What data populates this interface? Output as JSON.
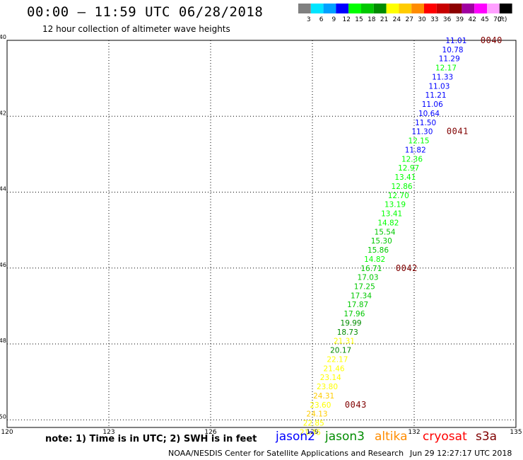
{
  "header": {
    "title": "00:00 – 11:59 UTC 06/28/2018",
    "subtitle": "12 hour collection of altimeter wave heights"
  },
  "color_scale": {
    "unit": "(ft)",
    "bins": [
      {
        "label": "3",
        "color": "#808080"
      },
      {
        "label": "6",
        "color": "#00e5ff"
      },
      {
        "label": "9",
        "color": "#00a0ff"
      },
      {
        "label": "12",
        "color": "#0000ff"
      },
      {
        "label": "15",
        "color": "#00ff00"
      },
      {
        "label": "18",
        "color": "#00c800"
      },
      {
        "label": "21",
        "color": "#008c00"
      },
      {
        "label": "24",
        "color": "#ffff00"
      },
      {
        "label": "27",
        "color": "#ffcc00"
      },
      {
        "label": "30",
        "color": "#ff8c00"
      },
      {
        "label": "33",
        "color": "#ff0000"
      },
      {
        "label": "36",
        "color": "#c80000"
      },
      {
        "label": "39",
        "color": "#8c0000"
      },
      {
        "label": "42",
        "color": "#a000a0"
      },
      {
        "label": "45",
        "color": "#ff00ff"
      },
      {
        "label": "70",
        "color": "#ffa0ff"
      },
      {
        "label": "",
        "color": "#000000"
      }
    ]
  },
  "chart_data": {
    "type": "scatter",
    "xlim": [
      120,
      135
    ],
    "ylim": [
      -50.2,
      -40
    ],
    "x_ticks": [
      {
        "v": 120,
        "label": "120"
      },
      {
        "v": 123,
        "label": "123"
      },
      {
        "v": 126,
        "label": "126"
      },
      {
        "v": 129,
        "label": "129"
      },
      {
        "v": 132,
        "label": "132"
      },
      {
        "v": 135,
        "label": "135"
      }
    ],
    "y_ticks": [
      {
        "v": -40,
        "label": "-40"
      },
      {
        "v": -42,
        "label": "-42"
      },
      {
        "v": -44,
        "label": "-44"
      },
      {
        "v": -46,
        "label": "-46"
      },
      {
        "v": -48,
        "label": "-48"
      },
      {
        "v": -50,
        "label": "-50"
      }
    ],
    "grid": true,
    "points": [
      {
        "x": 133.55,
        "y": -40.0,
        "label": "11.01",
        "color": "#0000ff"
      },
      {
        "x": 133.45,
        "y": -40.24,
        "label": "10.78",
        "color": "#0000ff"
      },
      {
        "x": 133.35,
        "y": -40.48,
        "label": "11.29",
        "color": "#0000ff"
      },
      {
        "x": 133.25,
        "y": -40.72,
        "label": "12.17",
        "color": "#00ff00"
      },
      {
        "x": 133.15,
        "y": -40.96,
        "label": "11.33",
        "color": "#0000ff"
      },
      {
        "x": 133.05,
        "y": -41.2,
        "label": "11.03",
        "color": "#0000ff"
      },
      {
        "x": 132.95,
        "y": -41.44,
        "label": "11.21",
        "color": "#0000ff"
      },
      {
        "x": 132.85,
        "y": -41.68,
        "label": "11.06",
        "color": "#0000ff"
      },
      {
        "x": 132.75,
        "y": -41.92,
        "label": "10.64",
        "color": "#0000ff"
      },
      {
        "x": 132.65,
        "y": -42.16,
        "label": "11.50",
        "color": "#0000ff"
      },
      {
        "x": 132.55,
        "y": -42.4,
        "label": "11.30",
        "color": "#0000ff"
      },
      {
        "x": 132.45,
        "y": -42.64,
        "label": "12.15",
        "color": "#00ff00"
      },
      {
        "x": 132.35,
        "y": -42.88,
        "label": "11.82",
        "color": "#0000ff"
      },
      {
        "x": 132.25,
        "y": -43.12,
        "label": "12.36",
        "color": "#00ff00"
      },
      {
        "x": 132.15,
        "y": -43.36,
        "label": "12.97",
        "color": "#00ff00"
      },
      {
        "x": 132.05,
        "y": -43.6,
        "label": "13.41",
        "color": "#00ff00"
      },
      {
        "x": 131.95,
        "y": -43.84,
        "label": "12.86",
        "color": "#00ff00"
      },
      {
        "x": 131.85,
        "y": -44.08,
        "label": "12.70",
        "color": "#00ff00"
      },
      {
        "x": 131.75,
        "y": -44.32,
        "label": "13.19",
        "color": "#00ff00"
      },
      {
        "x": 131.65,
        "y": -44.56,
        "label": "13.41",
        "color": "#00ff00"
      },
      {
        "x": 131.55,
        "y": -44.8,
        "label": "14.82",
        "color": "#00ff00"
      },
      {
        "x": 131.45,
        "y": -45.04,
        "label": "15.54",
        "color": "#00c800"
      },
      {
        "x": 131.35,
        "y": -45.28,
        "label": "15.30",
        "color": "#00c800"
      },
      {
        "x": 131.25,
        "y": -45.52,
        "label": "15.86",
        "color": "#00c800"
      },
      {
        "x": 131.15,
        "y": -45.76,
        "label": "14.82",
        "color": "#00ff00"
      },
      {
        "x": 131.05,
        "y": -46.0,
        "label": "16.71",
        "color": "#00c800"
      },
      {
        "x": 130.95,
        "y": -46.24,
        "label": "17.03",
        "color": "#00c800"
      },
      {
        "x": 130.85,
        "y": -46.48,
        "label": "17.25",
        "color": "#00c800"
      },
      {
        "x": 130.75,
        "y": -46.72,
        "label": "17.34",
        "color": "#00c800"
      },
      {
        "x": 130.65,
        "y": -46.96,
        "label": "17.87",
        "color": "#00c800"
      },
      {
        "x": 130.55,
        "y": -47.2,
        "label": "17.96",
        "color": "#00c800"
      },
      {
        "x": 130.45,
        "y": -47.44,
        "label": "19.99",
        "color": "#008c00"
      },
      {
        "x": 130.35,
        "y": -47.68,
        "label": "18.73",
        "color": "#008c00"
      },
      {
        "x": 130.25,
        "y": -47.92,
        "label": "21.31",
        "color": "#ffff00"
      },
      {
        "x": 130.15,
        "y": -48.16,
        "label": "20.17",
        "color": "#008c00"
      },
      {
        "x": 130.05,
        "y": -48.4,
        "label": "22.17",
        "color": "#ffff00"
      },
      {
        "x": 129.95,
        "y": -48.64,
        "label": "21.46",
        "color": "#ffff00"
      },
      {
        "x": 129.85,
        "y": -48.88,
        "label": "23.14",
        "color": "#ffff00"
      },
      {
        "x": 129.75,
        "y": -49.12,
        "label": "23.80",
        "color": "#ffff00"
      },
      {
        "x": 129.65,
        "y": -49.36,
        "label": "24.31",
        "color": "#ffcc00"
      },
      {
        "x": 129.55,
        "y": -49.6,
        "label": "23.60",
        "color": "#ffff00"
      },
      {
        "x": 129.45,
        "y": -49.84,
        "label": "24.13",
        "color": "#ffcc00"
      },
      {
        "x": 129.35,
        "y": -50.08,
        "label": "22.85",
        "color": "#ffff00"
      },
      {
        "x": 129.25,
        "y": -50.32,
        "label": "21.45",
        "color": "#ffff00"
      }
    ],
    "time_labels": [
      {
        "x": 134.6,
        "y": -40.0,
        "label": "0040",
        "color": "#800000"
      },
      {
        "x": 133.6,
        "y": -42.4,
        "label": "0041",
        "color": "#800000"
      },
      {
        "x": 132.1,
        "y": -46.0,
        "label": "0042",
        "color": "#800000"
      },
      {
        "x": 130.6,
        "y": -49.6,
        "label": "0043",
        "color": "#800000"
      }
    ]
  },
  "note": "note: 1) Time is in UTC; 2) SWH is in feet",
  "legend": [
    {
      "label": "jason2",
      "color": "#0000ff"
    },
    {
      "label": "jason3",
      "color": "#008c00"
    },
    {
      "label": "altika",
      "color": "#ff8c00"
    },
    {
      "label": "cryosat",
      "color": "#ff0000"
    },
    {
      "label": "s3a",
      "color": "#800000"
    }
  ],
  "footer": {
    "credit": "NOAA/NESDIS Center for Satellite Applications and Research",
    "timestamp": "Jun 29 12:27:17 UTC 2018"
  }
}
